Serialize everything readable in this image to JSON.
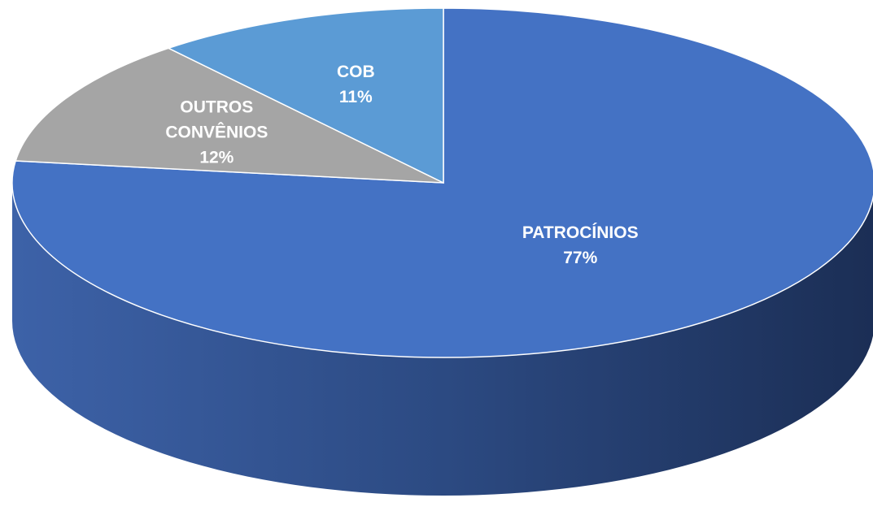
{
  "chart_data": {
    "type": "pie",
    "categories": [
      "PATROCÍNIOS",
      "OUTROS CONVÊNIOS",
      "COB"
    ],
    "values": [
      77,
      12,
      11
    ],
    "value_labels": [
      "77%",
      "12%",
      "11%"
    ],
    "colors": [
      "#4472c4",
      "#a5a5a5",
      "#5b9bd5"
    ]
  }
}
